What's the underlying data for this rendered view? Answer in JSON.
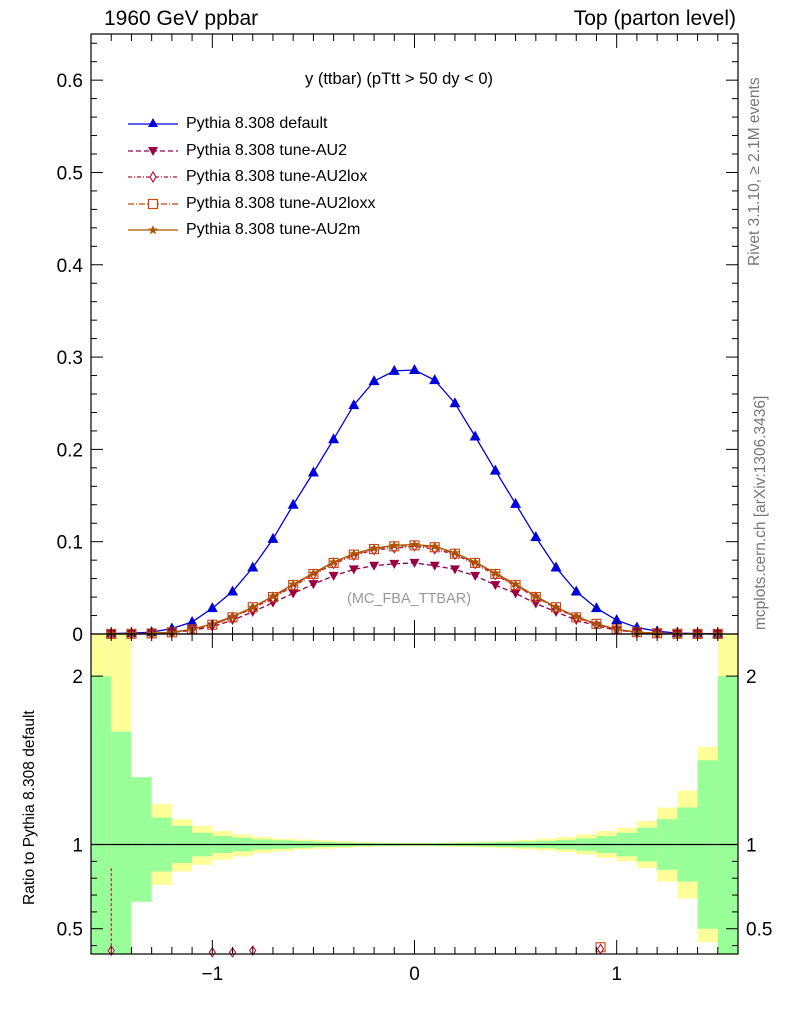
{
  "header": {
    "left": "1960 GeV ppbar",
    "right": "Top (parton level)"
  },
  "plot_title": "y (ttbar) (pTtt > 50 dy < 0)",
  "watermark": "(MC_FBA_TTBAR)",
  "side_labels": {
    "rivet": "Rivet 3.1.10, ≥ 2.1M events",
    "mcplots": "mcplots.cern.ch [arXiv:1306.3436]"
  },
  "ratio_ylabel": "Ratio to Pythia 8.308 default",
  "legend": [
    {
      "label": "Pythia 8.308 default",
      "color": "#0000dd",
      "marker": "triangle-up",
      "dash": "solid"
    },
    {
      "label": "Pythia 8.308 tune-AU2",
      "color": "#990044",
      "marker": "triangle-down",
      "dash": "dashed"
    },
    {
      "label": "Pythia 8.308 tune-AU2lox",
      "color": "#bb1133",
      "marker": "diamond-open",
      "dash": "dashdot"
    },
    {
      "label": "Pythia 8.308 tune-AU2loxx",
      "color": "#cc4411",
      "marker": "square-open",
      "dash": "dashdot2"
    },
    {
      "label": "Pythia 8.308 tune-AU2m",
      "color": "#aa5500",
      "marker": "star",
      "dash": "solid"
    }
  ],
  "chart_data": [
    {
      "type": "line",
      "panel": "main",
      "xlim": [
        -1.6,
        1.6
      ],
      "ylim": [
        0,
        0.65
      ],
      "yticks": [
        "0",
        "0.1",
        "0.2",
        "0.3",
        "0.4",
        "0.5",
        "0.6"
      ],
      "x": [
        -1.5,
        -1.4,
        -1.3,
        -1.2,
        -1.1,
        -1.0,
        -0.9,
        -0.8,
        -0.7,
        -0.6,
        -0.5,
        -0.4,
        -0.3,
        -0.2,
        -0.1,
        0.0,
        0.1,
        0.2,
        0.3,
        0.4,
        0.5,
        0.6,
        0.7,
        0.8,
        0.9,
        1.0,
        1.1,
        1.2,
        1.3,
        1.4,
        1.5
      ],
      "series": [
        {
          "name": "Pythia 8.308 default",
          "values": [
            0.0005,
            0.001,
            0.002,
            0.006,
            0.013,
            0.028,
            0.046,
            0.072,
            0.103,
            0.14,
            0.175,
            0.211,
            0.248,
            0.274,
            0.285,
            0.286,
            0.275,
            0.25,
            0.214,
            0.177,
            0.141,
            0.105,
            0.072,
            0.046,
            0.028,
            0.015,
            0.007,
            0.003,
            0.001,
            0.0005,
            0.0003
          ]
        },
        {
          "name": "Pythia 8.308 tune-AU2",
          "values": [
            0.0001,
            0.0002,
            0.0005,
            0.0015,
            0.004,
            0.008,
            0.015,
            0.024,
            0.034,
            0.044,
            0.054,
            0.063,
            0.07,
            0.074,
            0.076,
            0.077,
            0.074,
            0.07,
            0.063,
            0.053,
            0.044,
            0.033,
            0.024,
            0.015,
            0.009,
            0.004,
            0.0018,
            0.0007,
            0.0002,
            0.0001,
            0.0001
          ]
        },
        {
          "name": "Pythia 8.308 tune-AU2lox",
          "values": [
            0.0001,
            0.0002,
            0.0006,
            0.0018,
            0.005,
            0.01,
            0.018,
            0.028,
            0.039,
            0.052,
            0.064,
            0.076,
            0.085,
            0.091,
            0.093,
            0.095,
            0.092,
            0.086,
            0.076,
            0.064,
            0.052,
            0.04,
            0.028,
            0.018,
            0.01,
            0.005,
            0.002,
            0.0008,
            0.0003,
            0.0001,
            0.0001
          ]
        },
        {
          "name": "Pythia 8.308 tune-AU2loxx",
          "values": [
            0.0001,
            0.0002,
            0.0006,
            0.0018,
            0.005,
            0.01,
            0.018,
            0.029,
            0.04,
            0.053,
            0.065,
            0.077,
            0.086,
            0.092,
            0.095,
            0.096,
            0.094,
            0.087,
            0.077,
            0.065,
            0.053,
            0.04,
            0.029,
            0.018,
            0.011,
            0.005,
            0.002,
            0.0008,
            0.0003,
            0.0001,
            0.0001
          ]
        },
        {
          "name": "Pythia 8.308 tune-AU2m",
          "values": [
            0.0001,
            0.0002,
            0.0006,
            0.0018,
            0.005,
            0.011,
            0.019,
            0.029,
            0.041,
            0.054,
            0.066,
            0.078,
            0.087,
            0.093,
            0.096,
            0.097,
            0.095,
            0.088,
            0.078,
            0.066,
            0.054,
            0.041,
            0.029,
            0.019,
            0.011,
            0.005,
            0.002,
            0.0008,
            0.0003,
            0.0001,
            0.0001
          ]
        }
      ]
    },
    {
      "type": "area",
      "panel": "ratio",
      "xlim": [
        -1.6,
        1.6
      ],
      "ylim": [
        0.35,
        2.25
      ],
      "yticks": [
        "0.5",
        "1",
        "2"
      ],
      "xticks": [
        "−1",
        "0",
        "1"
      ],
      "reference": 1,
      "bins": [
        -1.55,
        -1.45,
        -1.35,
        -1.25,
        -1.15,
        -1.05,
        -0.95,
        -0.85,
        -0.75,
        -0.65,
        -0.55,
        -0.45,
        -0.35,
        -0.25,
        -0.15,
        -0.05,
        0.05,
        0.15,
        0.25,
        0.35,
        0.45,
        0.55,
        0.65,
        0.75,
        0.85,
        0.95,
        1.05,
        1.15,
        1.25,
        1.35,
        1.45,
        1.55
      ],
      "band_yellow": [
        [
          0.35,
          2.3
        ],
        [
          0.35,
          2.3
        ],
        [
          0.66,
          1.4
        ],
        [
          0.76,
          1.24
        ],
        [
          0.84,
          1.15
        ],
        [
          0.88,
          1.11
        ],
        [
          0.91,
          1.08
        ],
        [
          0.93,
          1.06
        ],
        [
          0.95,
          1.045
        ],
        [
          0.96,
          1.035
        ],
        [
          0.97,
          1.03
        ],
        [
          0.975,
          1.025
        ],
        [
          0.98,
          1.02
        ],
        [
          0.985,
          1.015
        ],
        [
          0.988,
          1.012
        ],
        [
          0.99,
          1.01
        ],
        [
          0.99,
          1.01
        ],
        [
          0.988,
          1.012
        ],
        [
          0.985,
          1.015
        ],
        [
          0.982,
          1.018
        ],
        [
          0.978,
          1.022
        ],
        [
          0.972,
          1.028
        ],
        [
          0.965,
          1.035
        ],
        [
          0.955,
          1.045
        ],
        [
          0.94,
          1.06
        ],
        [
          0.92,
          1.08
        ],
        [
          0.9,
          1.1
        ],
        [
          0.86,
          1.14
        ],
        [
          0.78,
          1.22
        ],
        [
          0.68,
          1.32
        ],
        [
          0.42,
          1.58
        ],
        [
          0.35,
          2.3
        ]
      ],
      "band_green": [
        [
          0.35,
          2.0
        ],
        [
          0.35,
          1.67
        ],
        [
          0.66,
          1.4
        ],
        [
          0.84,
          1.16
        ],
        [
          0.89,
          1.11
        ],
        [
          0.93,
          1.07
        ],
        [
          0.95,
          1.05
        ],
        [
          0.96,
          1.04
        ],
        [
          0.97,
          1.03
        ],
        [
          0.975,
          1.025
        ],
        [
          0.98,
          1.02
        ],
        [
          0.985,
          1.015
        ],
        [
          0.988,
          1.012
        ],
        [
          0.99,
          1.01
        ],
        [
          0.992,
          1.008
        ],
        [
          0.993,
          1.007
        ],
        [
          0.993,
          1.007
        ],
        [
          0.992,
          1.008
        ],
        [
          0.99,
          1.01
        ],
        [
          0.988,
          1.012
        ],
        [
          0.985,
          1.015
        ],
        [
          0.982,
          1.018
        ],
        [
          0.978,
          1.022
        ],
        [
          0.972,
          1.028
        ],
        [
          0.963,
          1.037
        ],
        [
          0.95,
          1.05
        ],
        [
          0.93,
          1.07
        ],
        [
          0.9,
          1.1
        ],
        [
          0.85,
          1.15
        ],
        [
          0.78,
          1.22
        ],
        [
          0.5,
          1.5
        ],
        [
          0.35,
          2.0
        ]
      ],
      "visible_ratio_points": [
        {
          "series": "Pythia 8.308 tune-AU2lox",
          "x": -1.5,
          "y": 0.37,
          "err": [
            0.35,
            0.86
          ]
        },
        {
          "series": "Pythia 8.308 tune-AU2lox",
          "x": -1.0,
          "y": 0.36,
          "err": [
            0.35,
            0.38
          ]
        },
        {
          "series": "Pythia 8.308 tune-AU2lox",
          "x": -0.9,
          "y": 0.36,
          "err": [
            0.35,
            0.37
          ]
        },
        {
          "series": "Pythia 8.308 tune-AU2lox",
          "x": -0.8,
          "y": 0.37,
          "err": [
            0.36,
            0.38
          ]
        },
        {
          "series": "Pythia 8.308 tune-AU2loxx",
          "x": 0.92,
          "y": 0.39,
          "err": [
            0.37,
            0.41
          ]
        },
        {
          "series": "Pythia 8.308 tune-AU2lox",
          "x": 0.92,
          "y": 0.38,
          "err": [
            0.36,
            0.4
          ]
        }
      ]
    }
  ]
}
